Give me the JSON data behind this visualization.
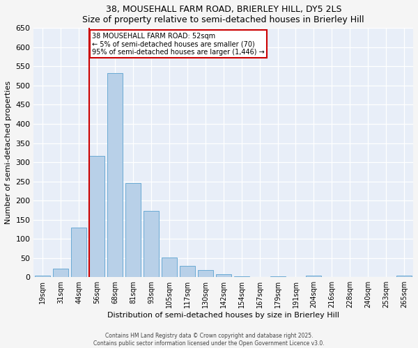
{
  "title": "38, MOUSEHALL FARM ROAD, BRIERLEY HILL, DY5 2LS",
  "subtitle": "Size of property relative to semi-detached houses in Brierley Hill",
  "xlabel": "Distribution of semi-detached houses by size in Brierley Hill",
  "ylabel": "Number of semi-detached properties",
  "categories": [
    "19sqm",
    "31sqm",
    "44sqm",
    "56sqm",
    "68sqm",
    "81sqm",
    "93sqm",
    "105sqm",
    "117sqm",
    "130sqm",
    "142sqm",
    "154sqm",
    "167sqm",
    "179sqm",
    "191sqm",
    "204sqm",
    "216sqm",
    "228sqm",
    "240sqm",
    "253sqm",
    "265sqm"
  ],
  "values": [
    5,
    23,
    130,
    317,
    532,
    245,
    173,
    52,
    29,
    18,
    7,
    2,
    0,
    3,
    0,
    4,
    0,
    1,
    0,
    0,
    4
  ],
  "bar_color": "#b8d0e8",
  "bar_edge_color": "#6aaad4",
  "background_color": "#e8eef8",
  "grid_color": "#ffffff",
  "vline_x_index": 3,
  "vline_color": "#cc0000",
  "annotation_text": "38 MOUSEHALL FARM ROAD: 52sqm\n← 5% of semi-detached houses are smaller (70)\n95% of semi-detached houses are larger (1,446) →",
  "annotation_box_color": "#ffffff",
  "annotation_box_edge_color": "#cc0000",
  "ylim": [
    0,
    650
  ],
  "yticks": [
    0,
    50,
    100,
    150,
    200,
    250,
    300,
    350,
    400,
    450,
    500,
    550,
    600,
    650
  ],
  "footer1": "Contains HM Land Registry data © Crown copyright and database right 2025.",
  "footer2": "Contains public sector information licensed under the Open Government Licence v3.0.",
  "fig_bg": "#f5f5f5"
}
